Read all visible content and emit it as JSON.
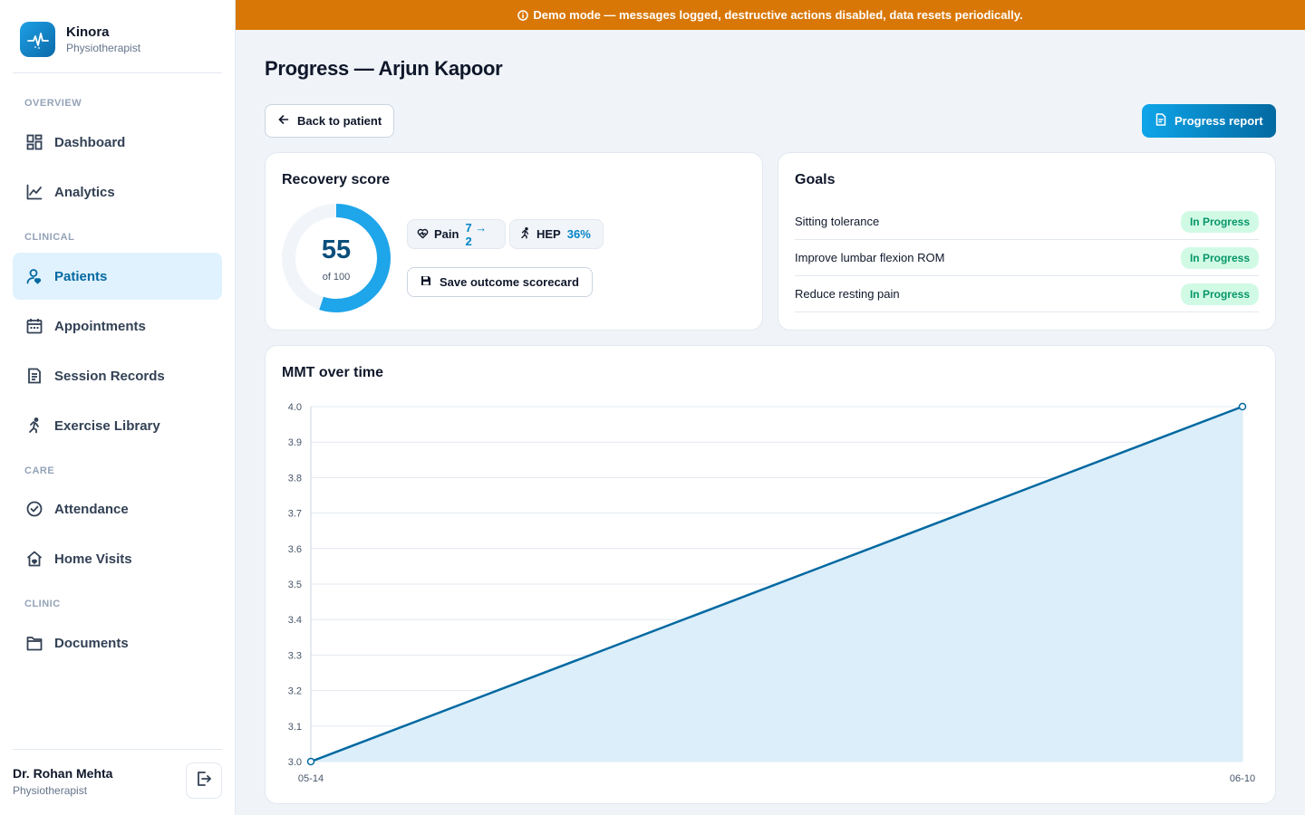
{
  "brand": {
    "name": "Kinora",
    "role": "Physiotherapist"
  },
  "banner": {
    "text": "Demo mode — messages logged, destructive actions disabled, data resets periodically."
  },
  "nav": {
    "sections": {
      "overview": "OVERVIEW",
      "clinical": "CLINICAL",
      "care": "CARE",
      "clinic": "CLINIC"
    },
    "items": [
      {
        "label": "Dashboard",
        "icon": "dashboard-icon"
      },
      {
        "label": "Analytics",
        "icon": "chart-line-icon"
      },
      {
        "label": "Patients",
        "icon": "patient-icon",
        "active": true
      },
      {
        "label": "Appointments",
        "icon": "calendar-icon"
      },
      {
        "label": "Session Records",
        "icon": "records-icon"
      },
      {
        "label": "Exercise Library",
        "icon": "running-icon"
      },
      {
        "label": "Attendance",
        "icon": "check-circle-icon"
      },
      {
        "label": "Home Visits",
        "icon": "home-icon"
      },
      {
        "label": "Documents",
        "icon": "folder-icon"
      }
    ]
  },
  "user": {
    "name": "Dr. Rohan Mehta",
    "role": "Physiotherapist"
  },
  "page": {
    "title": "Progress — Arjun Kapoor",
    "back_label": "Back to patient",
    "report_label": "Progress report"
  },
  "recovery": {
    "title": "Recovery score",
    "score": "55",
    "score_of": "of 100",
    "score_fraction": 0.55,
    "pain_label": "Pain",
    "pain_value": "7 → 2",
    "hep_label": "HEP",
    "hep_value": "36%",
    "save_label": "Save outcome scorecard"
  },
  "goals": {
    "title": "Goals",
    "items": [
      {
        "name": "Sitting tolerance",
        "status": "In Progress"
      },
      {
        "name": "Improve lumbar flexion ROM",
        "status": "In Progress"
      },
      {
        "name": "Reduce resting pain",
        "status": "In Progress"
      }
    ]
  },
  "chart_data": {
    "type": "area",
    "title": "MMT over time",
    "x": [
      "05-14",
      "06-10"
    ],
    "series": [
      {
        "values": [
          3.0,
          4.0
        ]
      }
    ],
    "ylim": [
      3.0,
      4.0
    ],
    "yticks": [
      "4.0",
      "3.9",
      "3.8",
      "3.7",
      "3.6",
      "3.5",
      "3.4",
      "3.3",
      "3.2",
      "3.1",
      "3.0"
    ],
    "grid": true,
    "line_color": "#0369a1",
    "fill_color": "#dbeefa"
  }
}
